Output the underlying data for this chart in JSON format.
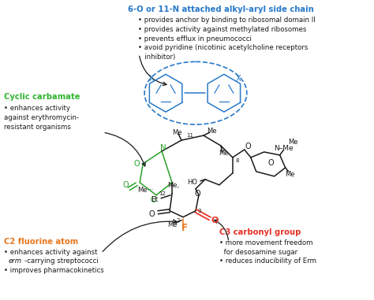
{
  "background_color": "#ffffff",
  "figsize": [
    4.74,
    3.81
  ],
  "dpi": 100,
  "colors": {
    "blue": "#2878c8",
    "green": "#32b432",
    "orange": "#e87820",
    "red": "#e83228",
    "black": "#1a1a1a",
    "dark_green": "#28a028"
  },
  "top_title": "6-O or 11-N attached alkyl-aryl side chain",
  "top_bullets": [
    "• provides anchor by binding to ribosomal domain II",
    "• provides activity against methylated ribosomes",
    "• prevents efflux in pneumococci",
    "• avoid pyridine (nicotinic acetylcholine receptors",
    "   inhibitor)"
  ],
  "left_title": "Cyclic carbamate",
  "left_bullets": [
    "• enhances activity",
    "against erythromycin-",
    "resistant organisms"
  ],
  "bl_title": "C2 fluorine atom",
  "bl_bullets_1": "• enhances activity against",
  "bl_bullets_2a": "erm",
  "bl_bullets_2b": "-carrying streptococci",
  "bl_bullets_3": "• improves pharmacokinetics",
  "br_title": "C3 carbonyl group",
  "br_bullets": [
    "• more movement freedom",
    "  for desosamine sugar",
    "• reduces inducibility of Erm"
  ]
}
